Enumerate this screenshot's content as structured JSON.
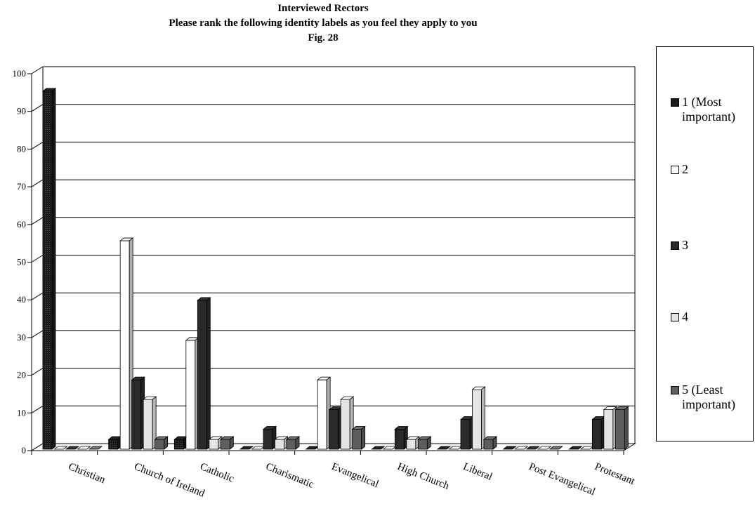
{
  "header": {
    "title": "Interviewed Rectors",
    "subtitle": "Please rank the following identity labels as you feel they apply to you",
    "figure": "Fig. 28"
  },
  "chart_data": {
    "type": "bar",
    "title": "Interviewed Rectors",
    "subtitle": "Please rank the following identity labels as you feel they apply to you",
    "xlabel": "",
    "ylabel": "",
    "ylim": [
      0,
      100
    ],
    "yticks": [
      "0",
      "10",
      "20",
      "30",
      "40",
      "50",
      "60",
      "70",
      "80",
      "90",
      "100"
    ],
    "grid": true,
    "legend_position": "right",
    "categories": [
      "Christian",
      "Church of Ireland",
      "Catholic",
      "Charismatic",
      "Evangelical",
      "High Church",
      "Liberal",
      "Post Evangelical",
      "Protestant"
    ],
    "series": [
      {
        "name": "1 (Most important)",
        "color": "#1c1c1c",
        "values": [
          95,
          2.6,
          2.6,
          0,
          0,
          0,
          0,
          0,
          0
        ]
      },
      {
        "name": "2",
        "color": "#ffffff",
        "values": [
          0,
          55.3,
          28.9,
          0,
          18.4,
          0,
          0,
          0,
          0
        ]
      },
      {
        "name": "3",
        "color": "#2a2a2a",
        "values": [
          0,
          18.4,
          39.5,
          5.3,
          10.5,
          5.3,
          7.9,
          0,
          7.9
        ]
      },
      {
        "name": "4",
        "color": "#e4e4e4",
        "values": [
          0,
          13.2,
          2.6,
          2.6,
          13.2,
          2.6,
          15.8,
          0,
          10.5
        ]
      },
      {
        "name": "5 (Least important)",
        "color": "#5e5e5e",
        "values": [
          0,
          2.6,
          2.6,
          2.6,
          5.3,
          2.6,
          2.6,
          0,
          10.5
        ]
      }
    ]
  },
  "legend": {
    "items": [
      {
        "line1": "1 (Most",
        "line2": "important)"
      },
      {
        "line1": "2",
        "line2": ""
      },
      {
        "line1": "3",
        "line2": ""
      },
      {
        "line1": "4",
        "line2": ""
      },
      {
        "line1": "5 (Least",
        "line2": "important)"
      }
    ]
  }
}
